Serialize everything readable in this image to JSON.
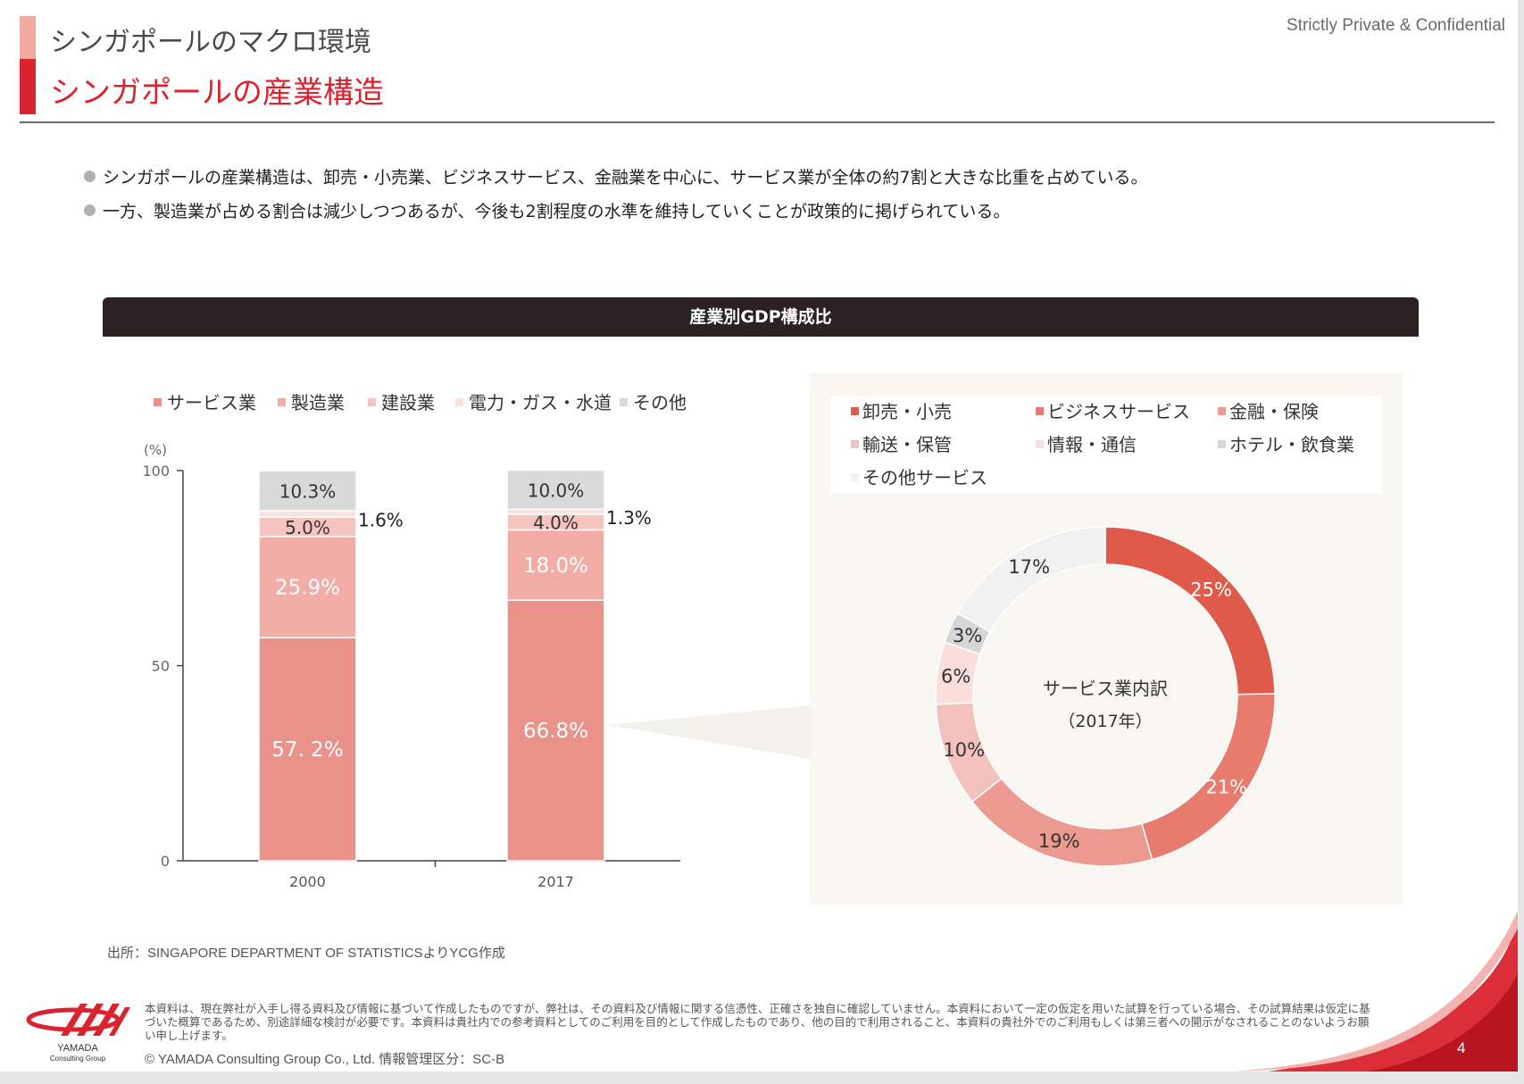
{
  "header": {
    "subtitle": "シンガポールのマクロ環境",
    "title": "シンガポールの産業構造",
    "confidential": "Strictly Private & Confidential"
  },
  "bullets": [
    "シンガポールの産業構造は、卸売・小売業、ビジネスサービス、金融業を中心に、サービス業が全体の約7割と大きな比重を占めている。",
    "一方、製造業が占める割合は減少しつつあるが、今後も2割程度の水準を維持していくことが政策的に掲げられている。"
  ],
  "chart_header": "産業別GDP構成比",
  "chart_data": [
    {
      "type": "bar",
      "stacked": true,
      "categories": [
        "2000",
        "2017"
      ],
      "y_unit_label": "(%)",
      "ylim": [
        0,
        100
      ],
      "yticks": [
        0,
        50,
        100
      ],
      "legend_position": "top",
      "series": [
        {
          "name": "サービス業",
          "values": [
            57.2,
            66.8
          ],
          "labels": [
            "57. 2%",
            "66.8%"
          ],
          "color": "#e8928a",
          "label_color": "#ffffff"
        },
        {
          "name": "製造業",
          "values": [
            25.9,
            18.0
          ],
          "labels": [
            "25.9%",
            "18.0%"
          ],
          "color": "#f2aca6",
          "label_color": "#ffffff"
        },
        {
          "name": "建設業",
          "values": [
            5.0,
            4.0
          ],
          "labels": [
            "5.0%",
            "4.0%"
          ],
          "color": "#f6c4bf",
          "label_color": "#333333"
        },
        {
          "name": "電力・ガス・水道",
          "values": [
            1.6,
            1.3
          ],
          "labels": [
            "1.6%",
            "1.3%"
          ],
          "color": "#fbe2de",
          "label_color": "#333333"
        },
        {
          "name": "その他",
          "values": [
            10.3,
            10.0
          ],
          "labels": [
            "10.3%",
            "10.0%"
          ],
          "color": "#d9d9d9",
          "label_color": "#333333"
        }
      ]
    },
    {
      "type": "pie",
      "donut": true,
      "center_label": "サービス業内訳",
      "center_sublabel": "（2017年）",
      "legend_position": "top",
      "slices": [
        {
          "name": "卸売・小売",
          "value": 25,
          "label": "25%",
          "color": "#e05a4c",
          "label_color": "#ffffff"
        },
        {
          "name": "ビジネスサービス",
          "value": 21,
          "label": "21%",
          "color": "#e77b6e",
          "label_color": "#ffffff"
        },
        {
          "name": "金融・保険",
          "value": 19,
          "label": "19%",
          "color": "#ec9a90",
          "label_color": "#333333"
        },
        {
          "name": "輸送・保管",
          "value": 10,
          "label": "10%",
          "color": "#f3c1bc",
          "label_color": "#333333"
        },
        {
          "name": "情報・通信",
          "value": 6,
          "label": "6%",
          "color": "#fadeda",
          "label_color": "#333333"
        },
        {
          "name": "ホテル・飲食業",
          "value": 3,
          "label": "3%",
          "color": "#d6d6d6",
          "label_color": "#333333"
        },
        {
          "name": "その他サービス",
          "value": 17,
          "label": "17%",
          "color": "#f1f1f1",
          "label_color": "#333333"
        }
      ]
    }
  ],
  "source": "出所：SINGAPORE DEPARTMENT OF STATISTICSよりYCG作成",
  "disclaimer": "本資料は、現在弊社が入手し得る資料及び情報に基づいて作成したものですが、弊社は、その資料及び情報に関する信憑性、正確さを独自に確認していません。本資料において一定の仮定を用いた試算を行っている場合、その試算結果は仮定に基づいた概算であるため、別途詳細な検討が必要です。本資料は貴社内での参考資料としてのご利用を目的として作成したものであり、他の目的で利用されること、本資料の貴社外でのご利用もしくは第三者への開示がなされることのないようお願い申し上げます。",
  "copyright": "©  YAMADA Consulting  Group  Co., Ltd.      情報管理区分：SC-B",
  "logo": {
    "name": "YAMADA",
    "sub": "Consulting Group"
  },
  "page_number": "4"
}
